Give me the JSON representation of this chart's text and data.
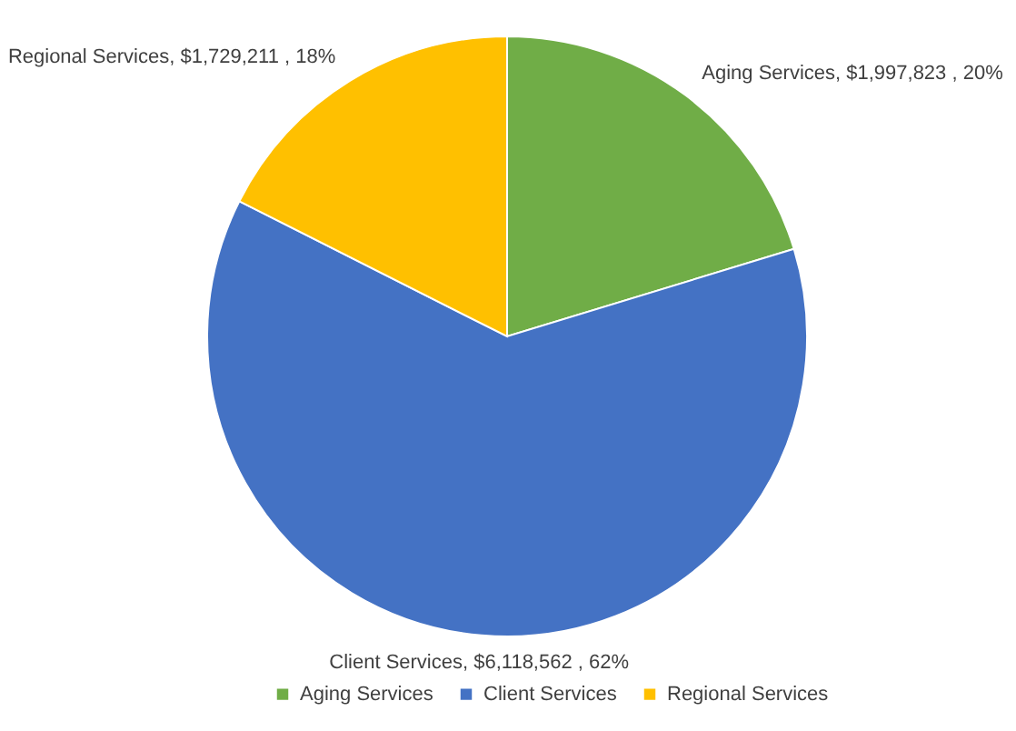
{
  "chart_data": {
    "type": "pie",
    "categories": [
      "Aging Services",
      "Client Services",
      "Regional Services"
    ],
    "values": [
      1997823,
      6118562,
      1729211
    ],
    "value_labels": [
      "Aging Services,  $1,997,823 , 20%",
      "Client Services,  $6,118,562 , 62%",
      "Regional Services,  $1,729,211 , 18%"
    ],
    "colors": [
      "#70ad47",
      "#4472c4",
      "#ffc000"
    ],
    "legend": "bottom"
  }
}
